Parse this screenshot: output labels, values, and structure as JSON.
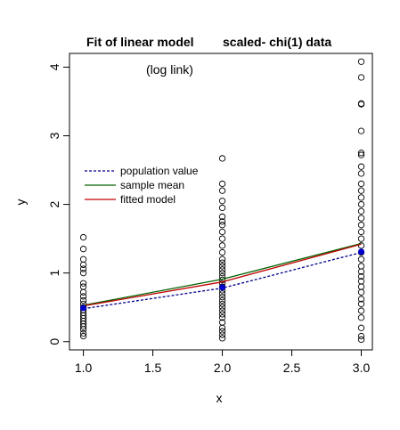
{
  "chart_data": {
    "type": "scatter",
    "title_left": "Fit of linear model",
    "title_right": "scaled- chi(1) data",
    "annotation": "(log link)",
    "xlabel": "x",
    "ylabel": "y",
    "xlim": [
      0.9,
      3.08
    ],
    "ylim": [
      -0.12,
      4.2
    ],
    "x_ticks": [
      1.0,
      1.5,
      2.0,
      2.5,
      3.0
    ],
    "x_tick_labels": [
      "1.0",
      "1.5",
      "2.0",
      "2.5",
      "3.0"
    ],
    "y_ticks": [
      0,
      1,
      2,
      3,
      4
    ],
    "y_tick_labels": [
      "0",
      "1",
      "2",
      "3",
      "4"
    ],
    "points": {
      "x1": [
        0.08,
        0.12,
        0.18,
        0.22,
        0.26,
        0.3,
        0.34,
        0.38,
        0.42,
        0.46,
        0.5,
        0.55,
        0.6,
        0.66,
        0.72,
        0.8,
        0.85,
        1.0,
        1.06,
        1.12,
        1.2,
        1.35,
        1.52
      ],
      "x2": [
        0.05,
        0.1,
        0.15,
        0.2,
        0.28,
        0.35,
        0.4,
        0.45,
        0.5,
        0.55,
        0.6,
        0.65,
        0.7,
        0.75,
        0.8,
        0.85,
        0.9,
        0.95,
        1.0,
        1.05,
        1.1,
        1.15,
        1.2,
        1.3,
        1.4,
        1.5,
        1.6,
        1.7,
        1.75,
        1.82,
        1.95,
        2.05,
        2.2,
        2.3,
        2.67
      ],
      "x3": [
        0.03,
        0.08,
        0.2,
        0.35,
        0.45,
        0.55,
        0.62,
        0.72,
        0.8,
        0.88,
        0.95,
        1.02,
        1.1,
        1.2,
        1.3,
        1.4,
        1.5,
        1.6,
        1.7,
        1.8,
        1.9,
        2.0,
        2.1,
        2.2,
        2.3,
        2.45,
        2.55,
        2.72,
        2.75,
        3.07,
        3.46,
        3.47,
        3.85,
        4.08
      ]
    },
    "series": [
      {
        "name": "population value",
        "color": "#00008b",
        "dash": "3,2",
        "x": [
          1,
          2,
          3
        ],
        "y": [
          0.48,
          0.78,
          1.3
        ]
      },
      {
        "name": "sample mean",
        "color": "#006400",
        "dash": "",
        "x": [
          1,
          2,
          3
        ],
        "y": [
          0.53,
          0.91,
          1.43
        ]
      },
      {
        "name": "fitted model",
        "color": "#c00000",
        "dash": "",
        "x": [
          1,
          2,
          3
        ],
        "y": [
          0.52,
          0.87,
          1.42
        ]
      }
    ],
    "true_means": {
      "color": "#0000cd",
      "x": [
        1,
        2,
        3
      ],
      "y": [
        0.49,
        0.79,
        1.31
      ]
    },
    "legend_position": "left"
  }
}
